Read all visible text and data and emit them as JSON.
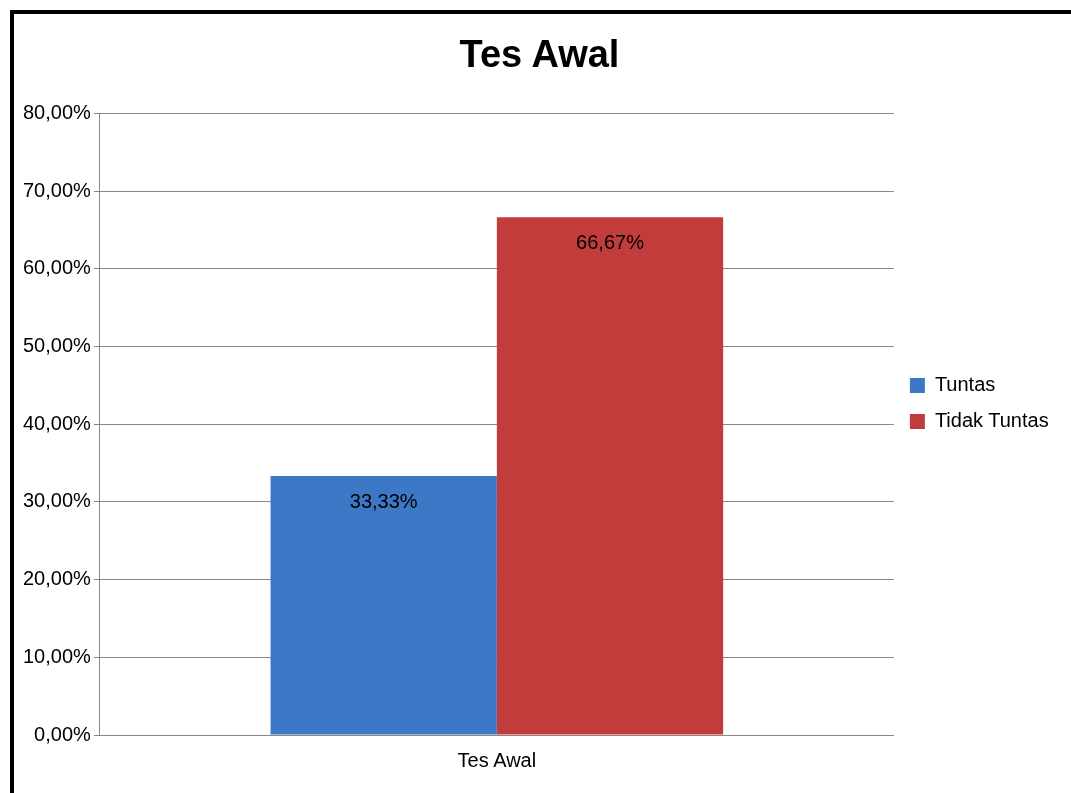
{
  "chart_data": {
    "type": "bar",
    "title": "Tes Awal",
    "categories": [
      "Tes Awal"
    ],
    "series": [
      {
        "name": "Tuntas",
        "color": "#3d78c6",
        "values": [
          33.33
        ],
        "value_labels": [
          "33,33%"
        ]
      },
      {
        "name": "Tidak Tuntas",
        "color": "#c23c3b",
        "values": [
          66.67
        ],
        "value_labels": [
          "66,67%"
        ]
      }
    ],
    "ylim": [
      0,
      80
    ],
    "yticks": [
      {
        "value": 0,
        "label": "0,00%"
      },
      {
        "value": 10,
        "label": "10,00%"
      },
      {
        "value": 20,
        "label": "20,00%"
      },
      {
        "value": 30,
        "label": "30,00%"
      },
      {
        "value": 40,
        "label": "40,00%"
      },
      {
        "value": 50,
        "label": "50,00%"
      },
      {
        "value": 60,
        "label": "60,00%"
      },
      {
        "value": 70,
        "label": "70,00%"
      },
      {
        "value": 80,
        "label": "80,00%"
      }
    ],
    "grid": "y",
    "legend": "right"
  }
}
